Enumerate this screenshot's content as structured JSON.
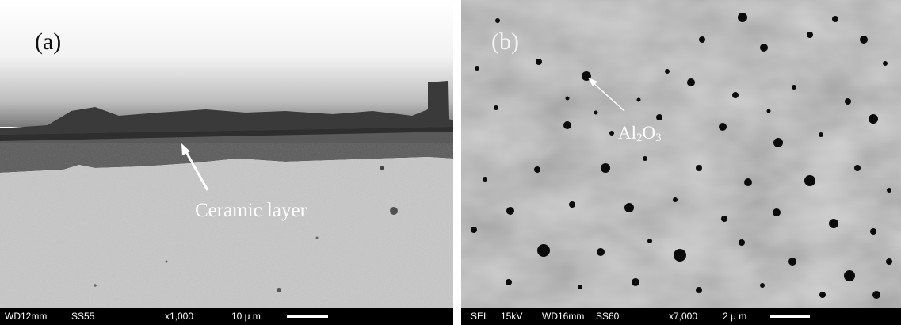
{
  "panel_a": {
    "label": "(a)",
    "annotation": "Ceramic layer",
    "info_bar": {
      "wd": "WD12mm",
      "ss": "SS55",
      "magnification": "x1,000",
      "scale": "10 μ m"
    }
  },
  "panel_b": {
    "label": "(b)",
    "annotation": {
      "main": "Al",
      "sub1": "2",
      "mid": "O",
      "sub2": "3"
    },
    "info_bar": {
      "mode": "SEI",
      "kv": "15kV",
      "wd": "WD16mm",
      "ss": "SS60",
      "magnification": "x7,000",
      "scale": "2 μ m"
    }
  }
}
